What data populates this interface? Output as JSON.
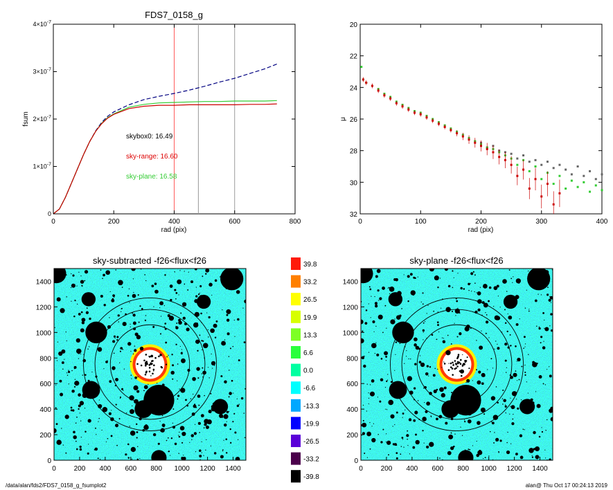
{
  "footer": {
    "left": "/data/alan/fds2/FDS7_0158_g_fsumplot2",
    "right": "alan@  Thu Oct 17 00:24:13 2019"
  },
  "chart_data": [
    {
      "type": "line",
      "title": "FDS7_0158_g",
      "xlabel": "rad (pix)",
      "ylabel": "fsum",
      "xlim": [
        0,
        800
      ],
      "ylim": [
        0,
        4e-07
      ],
      "xticks": [
        "0",
        "200",
        "400",
        "600",
        "800"
      ],
      "yticks": [
        {
          "base": "0",
          "exp": ""
        },
        {
          "base": "1×10",
          "exp": "-7"
        },
        {
          "base": "2×10",
          "exp": "-7"
        },
        {
          "base": "3×10",
          "exp": "-7"
        },
        {
          "base": "4×10",
          "exp": "-7"
        }
      ],
      "vlines": [
        {
          "x": 400,
          "color": "#ff5a5a"
        },
        {
          "x": 480,
          "color": "#999999"
        },
        {
          "x": 600,
          "color": "#999999"
        }
      ],
      "annotations": [
        {
          "text": "skybox0: 16.49",
          "color": "#000000"
        },
        {
          "text": "sky-range: 16.60",
          "color": "#dd0000"
        },
        {
          "text": "sky-plane: 16.58",
          "color": "#33cc33"
        }
      ],
      "series": [
        {
          "color": "#000080",
          "style": "dashed",
          "x": [
            0,
            20,
            40,
            60,
            80,
            100,
            120,
            140,
            160,
            180,
            200,
            250,
            300,
            350,
            400,
            450,
            500,
            550,
            600,
            650,
            700,
            740
          ],
          "y": [
            0,
            1e-08,
            3.5e-08,
            6.5e-08,
            9.5e-08,
            1.25e-07,
            1.52e-07,
            1.75e-07,
            1.93e-07,
            2.06e-07,
            2.15e-07,
            2.3e-07,
            2.41e-07,
            2.48e-07,
            2.54e-07,
            2.61e-07,
            2.69e-07,
            2.78e-07,
            2.86e-07,
            2.96e-07,
            3.06e-07,
            3.16e-07
          ]
        },
        {
          "color": "#33cc33",
          "style": "solid",
          "x": [
            0,
            20,
            40,
            60,
            80,
            100,
            120,
            140,
            160,
            180,
            200,
            250,
            300,
            350,
            400,
            450,
            500,
            550,
            600,
            650,
            700,
            740
          ],
          "y": [
            0,
            1e-08,
            3.5e-08,
            6.5e-08,
            9.5e-08,
            1.25e-07,
            1.52e-07,
            1.74e-07,
            1.91e-07,
            2.03e-07,
            2.11e-07,
            2.25e-07,
            2.31e-07,
            2.34e-07,
            2.35e-07,
            2.36e-07,
            2.37e-07,
            2.37e-07,
            2.38e-07,
            2.38e-07,
            2.38e-07,
            2.39e-07
          ]
        },
        {
          "color": "#cc0000",
          "style": "solid",
          "x": [
            0,
            20,
            40,
            60,
            80,
            100,
            120,
            140,
            160,
            180,
            200,
            250,
            300,
            350,
            400,
            450,
            500,
            550,
            600,
            650,
            700,
            740
          ],
          "y": [
            0,
            1e-08,
            3.5e-08,
            6.5e-08,
            9.5e-08,
            1.25e-07,
            1.52e-07,
            1.74e-07,
            1.9e-07,
            2.02e-07,
            2.1e-07,
            2.22e-07,
            2.27e-07,
            2.29e-07,
            2.29e-07,
            2.3e-07,
            2.3e-07,
            2.3e-07,
            2.3e-07,
            2.31e-07,
            2.31e-07,
            2.32e-07
          ]
        }
      ]
    },
    {
      "type": "scatter",
      "title": "",
      "xlabel": "rad (pix)",
      "ylabel": "μ",
      "xlim": [
        0,
        400
      ],
      "ylim": [
        32,
        20
      ],
      "xticks": [
        "0",
        "100",
        "200",
        "300",
        "400"
      ],
      "yticks": [
        "20",
        "22",
        "24",
        "26",
        "28",
        "30",
        "32"
      ],
      "series": [
        {
          "color": "#666666",
          "marker": "square",
          "x": [
            200,
            210,
            220,
            230,
            240,
            250,
            260,
            270,
            280,
            290,
            300,
            310,
            320,
            330,
            340,
            350,
            360,
            370,
            380,
            390,
            400
          ],
          "y": [
            27.5,
            27.8,
            27.7,
            28.0,
            28.1,
            28.2,
            28.5,
            28.3,
            28.7,
            28.6,
            28.9,
            28.7,
            29.1,
            28.9,
            29.2,
            29.5,
            29.0,
            29.6,
            29.3,
            29.8,
            29.5
          ]
        },
        {
          "color": "#33cc33",
          "marker": "square",
          "x": [
            2,
            5,
            10,
            20,
            30,
            40,
            50,
            60,
            70,
            80,
            90,
            100,
            110,
            120,
            130,
            140,
            150,
            160,
            170,
            180,
            190,
            200,
            210,
            220,
            230,
            240,
            250,
            260,
            270,
            280,
            290,
            300,
            310,
            320,
            330,
            340,
            350,
            360,
            370,
            380,
            390,
            400
          ],
          "y": [
            22.7,
            23.5,
            23.7,
            23.9,
            24.1,
            24.4,
            24.6,
            24.9,
            25.1,
            25.3,
            25.5,
            25.6,
            25.8,
            26.0,
            26.2,
            26.4,
            26.6,
            26.8,
            27.0,
            27.2,
            27.4,
            27.6,
            27.8,
            27.9,
            28.1,
            28.3,
            28.5,
            28.9,
            28.6,
            29.3,
            29.0,
            29.8,
            29.4,
            30.1,
            29.6,
            30.4,
            29.9,
            30.3,
            30.0,
            30.6,
            30.2,
            30.5
          ]
        },
        {
          "color": "#cc0000",
          "marker": "square",
          "error": true,
          "x": [
            5,
            10,
            20,
            30,
            40,
            50,
            60,
            70,
            80,
            90,
            100,
            110,
            120,
            130,
            140,
            150,
            160,
            170,
            180,
            190,
            200,
            210,
            220,
            230,
            240,
            250,
            260,
            270,
            280,
            290,
            300,
            310,
            320,
            330
          ],
          "y": [
            23.5,
            23.7,
            23.9,
            24.2,
            24.5,
            24.7,
            25.0,
            25.2,
            25.4,
            25.6,
            25.7,
            25.9,
            26.1,
            26.3,
            26.5,
            26.7,
            26.9,
            27.1,
            27.3,
            27.5,
            27.7,
            27.9,
            28.1,
            28.4,
            28.6,
            28.9,
            29.6,
            29.2,
            30.4,
            29.8,
            30.9,
            30.1,
            31.4,
            30.7
          ]
        }
      ]
    },
    {
      "type": "heatmap",
      "title": "sky-subtracted -f26<flux<f26",
      "xlim": [
        0,
        1500
      ],
      "ylim": [
        0,
        1500
      ],
      "xticks": [
        "0",
        "200",
        "400",
        "600",
        "800",
        "1000",
        "1200",
        "1400"
      ],
      "yticks": [
        "0",
        "200",
        "400",
        "600",
        "800",
        "1000",
        "1200",
        "1400"
      ]
    },
    {
      "type": "heatmap",
      "title": "sky-plane -f26<flux<f26",
      "xlim": [
        0,
        1500
      ],
      "ylim": [
        0,
        1500
      ],
      "xticks": [
        "0",
        "200",
        "400",
        "600",
        "800",
        "1000",
        "1200",
        "1400"
      ],
      "yticks": [
        "0",
        "200",
        "400",
        "600",
        "800",
        "1000",
        "1200",
        "1400"
      ]
    }
  ],
  "colorbar": {
    "labels": [
      "39.8",
      "33.2",
      "26.5",
      "19.9",
      "13.3",
      "6.6",
      "0.0",
      "-6.6",
      "-13.3",
      "-19.9",
      "-26.5",
      "-33.2",
      "-39.8"
    ],
    "colors": [
      "#ff1a0a",
      "#ff7f00",
      "#ffff00",
      "#d7ff00",
      "#7dff24",
      "#2aff3c",
      "#00ffa0",
      "#00ffff",
      "#00a8ff",
      "#0000ff",
      "#5a00d8",
      "#4b004b",
      "#000000"
    ]
  },
  "map_masks": {
    "big_circles": [
      {
        "x": 20,
        "y": 1460,
        "r": 75
      },
      {
        "x": 1390,
        "y": 1420,
        "r": 90
      },
      {
        "x": 1170,
        "y": 1240,
        "r": 55
      },
      {
        "x": 270,
        "y": 1260,
        "r": 55
      },
      {
        "x": 330,
        "y": 1000,
        "r": 85
      },
      {
        "x": 290,
        "y": 550,
        "r": 70
      },
      {
        "x": 820,
        "y": 470,
        "r": 120
      },
      {
        "x": 700,
        "y": 400,
        "r": 70
      },
      {
        "x": 1300,
        "y": 420,
        "r": 60
      },
      {
        "x": 820,
        "y": 20,
        "r": 60
      }
    ],
    "rings": [
      {
        "x": 750,
        "y": 750,
        "r": 310,
        "color": "#000000"
      },
      {
        "x": 750,
        "y": 750,
        "r": 430,
        "color": "#000000"
      },
      {
        "x": 750,
        "y": 750,
        "r": 520,
        "color": "#000000"
      }
    ]
  }
}
